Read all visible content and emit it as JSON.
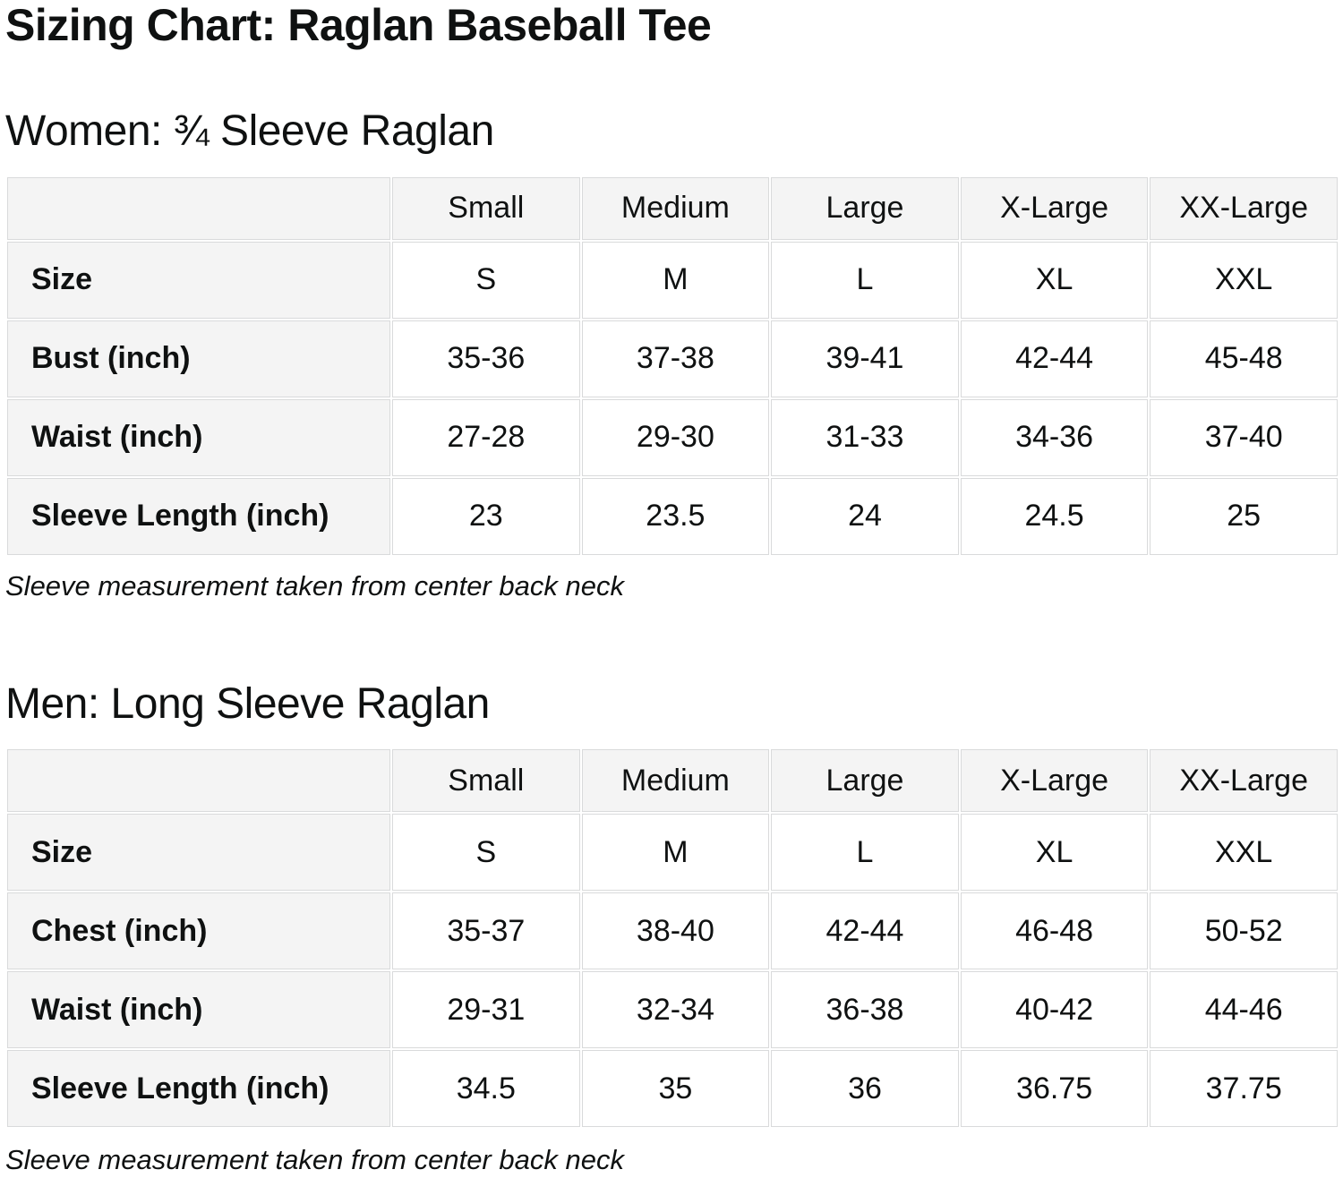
{
  "title": "Sizing Chart: Raglan Baseball Tee",
  "sections": [
    {
      "heading": "Women: ¾ Sleeve Raglan",
      "note": "Sleeve measurement taken from center back neck",
      "table": {
        "size_headers": [
          "Small",
          "Medium",
          "Large",
          "X-Large",
          "XX-Large"
        ],
        "rows": [
          {
            "label": "Size",
            "values": [
              "S",
              "M",
              "L",
              "XL",
              "XXL"
            ]
          },
          {
            "label": "Bust (inch)",
            "values": [
              "35-36",
              "37-38",
              "39-41",
              "42-44",
              "45-48"
            ]
          },
          {
            "label": "Waist (inch)",
            "values": [
              "27-28",
              "29-30",
              "31-33",
              "34-36",
              "37-40"
            ]
          },
          {
            "label": "Sleeve Length (inch)",
            "values": [
              "23",
              "23.5",
              "24",
              "24.5",
              "25"
            ]
          }
        ]
      }
    },
    {
      "heading": "Men: Long Sleeve Raglan",
      "note": "Sleeve measurement taken from center back neck",
      "table": {
        "size_headers": [
          "Small",
          "Medium",
          "Large",
          "X-Large",
          "XX-Large"
        ],
        "rows": [
          {
            "label": "Size",
            "values": [
              "S",
              "M",
              "L",
              "XL",
              "XXL"
            ]
          },
          {
            "label": "Chest (inch)",
            "values": [
              "35-37",
              "38-40",
              "42-44",
              "46-48",
              "50-52"
            ]
          },
          {
            "label": "Waist (inch)",
            "values": [
              "29-31",
              "32-34",
              "36-38",
              "40-42",
              "44-46"
            ]
          },
          {
            "label": "Sleeve Length (inch)",
            "values": [
              "34.5",
              "35",
              "36",
              "36.75",
              "37.75"
            ]
          }
        ]
      }
    }
  ],
  "colors": {
    "page_bg": "#ffffff",
    "text": "#0f1111",
    "cell_bg_gray": "#f4f4f4",
    "cell_bg_white": "#ffffff",
    "border": "#d9dadb"
  }
}
